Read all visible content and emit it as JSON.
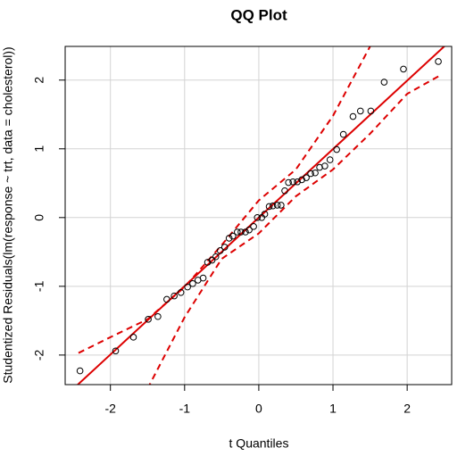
{
  "chart_data": {
    "type": "scatter",
    "title": "QQ Plot",
    "xlabel": "t Quantiles",
    "ylabel": "Studentized Residuals(lm(response ~ trt, data = cholesterol))",
    "xlim": [
      -2.61,
      2.6
    ],
    "ylim": [
      -2.43,
      2.49
    ],
    "xticks": [
      -2,
      -1,
      0,
      1,
      2
    ],
    "yticks": [
      -2,
      -1,
      0,
      1,
      2
    ],
    "grid": true,
    "point_color": "#000000",
    "x": [
      -2.41,
      -1.93,
      -1.69,
      -1.49,
      -1.36,
      -1.24,
      -1.14,
      -1.05,
      -0.96,
      -0.89,
      -0.82,
      -0.75,
      -0.69,
      -0.63,
      -0.58,
      -0.52,
      -0.46,
      -0.4,
      -0.35,
      -0.29,
      -0.24,
      -0.18,
      -0.13,
      -0.07,
      -0.02,
      0.04,
      0.08,
      0.14,
      0.19,
      0.25,
      0.3,
      0.35,
      0.4,
      0.46,
      0.52,
      0.58,
      0.64,
      0.7,
      0.76,
      0.82,
      0.89,
      0.96,
      1.05,
      1.14,
      1.27,
      1.37,
      1.51,
      1.69,
      1.95,
      2.42
    ],
    "values": [
      -2.23,
      -1.94,
      -1.74,
      -1.48,
      -1.44,
      -1.19,
      -1.14,
      -1.09,
      -1.01,
      -0.96,
      -0.91,
      -0.88,
      -0.65,
      -0.62,
      -0.57,
      -0.48,
      -0.43,
      -0.3,
      -0.27,
      -0.21,
      -0.21,
      -0.21,
      -0.18,
      -0.13,
      0,
      0,
      0.05,
      0.16,
      0.17,
      0.18,
      0.18,
      0.39,
      0.51,
      0.52,
      0.52,
      0.55,
      0.58,
      0.64,
      0.65,
      0.73,
      0.75,
      0.84,
      0.99,
      1.21,
      1.47,
      1.55,
      1.55,
      1.97,
      2.16,
      2.27
    ],
    "lines": [
      {
        "color": "#dd0000",
        "dashed": false,
        "x": [
          -2.61,
          2.6
        ],
        "values": [
          -2.6,
          2.59
        ]
      },
      {
        "color": "#dd0000",
        "dashed": true,
        "x": [
          -2.43,
          -2,
          -1.5,
          -1,
          -0.5,
          0,
          0.5,
          1,
          1.5
        ],
        "values": [
          -1.97,
          -1.74,
          -1.48,
          -1.01,
          -0.4,
          0.25,
          0.7,
          1.48,
          2.49
        ]
      },
      {
        "color": "#dd0000",
        "dashed": true,
        "x": [
          -1.5,
          -1,
          -0.5,
          0,
          0.5,
          1,
          1.5,
          2,
          2.43
        ],
        "values": [
          -2.49,
          -1.45,
          -0.6,
          -0.23,
          0.31,
          0.7,
          1.22,
          1.8,
          2.06
        ]
      }
    ]
  }
}
